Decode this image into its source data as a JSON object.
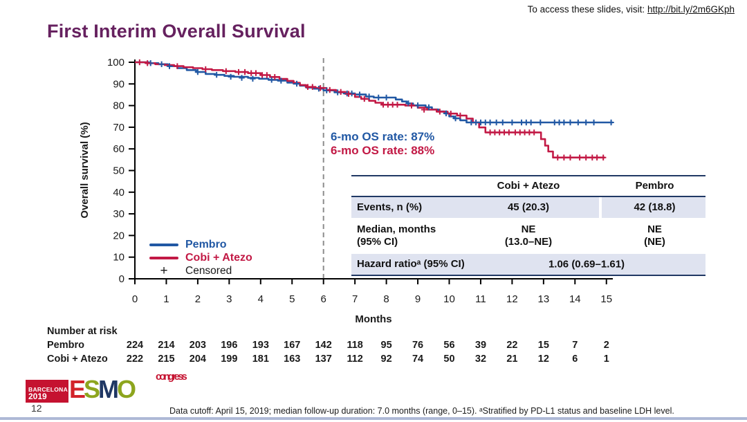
{
  "slide": {
    "access_note_prefix": "To access these slides, visit: ",
    "access_link": "http://bit.ly/2m6GKph",
    "title": "First Interim Overall Survival",
    "page_number": "12",
    "footer": "Data cutoff: April 15, 2019; median follow-up duration: 7.0 months (range, 0–15). ᵃStratified by PD-L1 status and baseline LDH level."
  },
  "logo": {
    "city": "BARCELONA",
    "year": "2019",
    "letters": [
      {
        "ch": "E",
        "color": "#D2232A"
      },
      {
        "ch": "S",
        "color": "#8DA51E"
      },
      {
        "ch": "M",
        "color": "#203864"
      },
      {
        "ch": "O",
        "color": "#8DA51E"
      }
    ],
    "congress": "congress"
  },
  "chart_data": {
    "type": "line",
    "subtype": "kaplan_meier_step",
    "title": "First Interim Overall Survival",
    "xlabel": "Months",
    "ylabel": "Overall survival (%)",
    "xlim": [
      0,
      15
    ],
    "ylim": [
      0,
      100
    ],
    "grid": false,
    "xticks": [
      0,
      1,
      2,
      3,
      4,
      5,
      6,
      7,
      8,
      9,
      10,
      11,
      12,
      13,
      14,
      15
    ],
    "yticks": [
      0,
      10,
      20,
      30,
      40,
      50,
      60,
      70,
      80,
      90,
      100
    ],
    "reference_line_x": 6,
    "reference_line_color": "#8C8C8C",
    "annotations": [
      {
        "text": "6-mo OS rate: 87%",
        "series": "Pembro",
        "color": "#2158A4"
      },
      {
        "text": "6-mo OS rate: 88%",
        "series": "Cobi + Atezo",
        "color": "#C21945"
      }
    ],
    "legend": [
      {
        "label": "Pembro",
        "color": "#2158A4",
        "marker": "line"
      },
      {
        "label": "Cobi + Atezo",
        "color": "#C21945",
        "marker": "line"
      },
      {
        "label": "Censored",
        "color": "#1A1A1A",
        "marker": "+"
      }
    ],
    "series": [
      {
        "name": "Pembro",
        "color": "#2158A4",
        "steps": [
          [
            0,
            100
          ],
          [
            0.45,
            99.6
          ],
          [
            0.75,
            99.1
          ],
          [
            1.05,
            98.2
          ],
          [
            1.35,
            97.3
          ],
          [
            1.65,
            96.4
          ],
          [
            1.95,
            95.5
          ],
          [
            2.25,
            94.6
          ],
          [
            2.55,
            94.2
          ],
          [
            2.85,
            93.7
          ],
          [
            3.15,
            93.3
          ],
          [
            3.6,
            92.8
          ],
          [
            3.95,
            92.4
          ],
          [
            4.25,
            91.9
          ],
          [
            4.55,
            91.5
          ],
          [
            4.85,
            90.6
          ],
          [
            5.05,
            90.1
          ],
          [
            5.25,
            89.2
          ],
          [
            5.45,
            88.3
          ],
          [
            5.7,
            87.8
          ],
          [
            6.0,
            87
          ],
          [
            6.35,
            86.1
          ],
          [
            6.65,
            85.6
          ],
          [
            7.0,
            85.1
          ],
          [
            7.35,
            84.2
          ],
          [
            7.6,
            83.7
          ],
          [
            8.3,
            82.8
          ],
          [
            8.5,
            81.9
          ],
          [
            8.65,
            81
          ],
          [
            8.85,
            80.1
          ],
          [
            9.25,
            79.2
          ],
          [
            9.45,
            78.2
          ],
          [
            9.65,
            77.3
          ],
          [
            9.85,
            76.4
          ],
          [
            10.0,
            75
          ],
          [
            10.15,
            74.1
          ],
          [
            10.35,
            73.2
          ],
          [
            10.55,
            72.2
          ],
          [
            15.2,
            72.2
          ]
        ],
        "censors": [
          [
            0.5,
            99.6
          ],
          [
            0.85,
            99.1
          ],
          [
            1.1,
            98.2
          ],
          [
            2.0,
            95.5
          ],
          [
            2.6,
            94.2
          ],
          [
            3.05,
            93.3
          ],
          [
            3.4,
            92.8
          ],
          [
            3.75,
            92.4
          ],
          [
            4.35,
            91.9
          ],
          [
            4.65,
            91.5
          ],
          [
            5.15,
            90.1
          ],
          [
            5.85,
            87.8
          ],
          [
            6.1,
            87
          ],
          [
            6.45,
            86.1
          ],
          [
            6.75,
            85.6
          ],
          [
            6.9,
            85.6
          ],
          [
            7.15,
            85.1
          ],
          [
            7.45,
            84.2
          ],
          [
            7.75,
            83.7
          ],
          [
            8.0,
            83.7
          ],
          [
            8.7,
            81
          ],
          [
            9.0,
            80.1
          ],
          [
            9.35,
            79.2
          ],
          [
            9.9,
            76.4
          ],
          [
            10.2,
            74.1
          ],
          [
            10.7,
            72.2
          ],
          [
            10.85,
            72.2
          ],
          [
            11.0,
            72.2
          ],
          [
            11.15,
            72.2
          ],
          [
            11.3,
            72.2
          ],
          [
            11.5,
            72.2
          ],
          [
            11.7,
            72.2
          ],
          [
            12.0,
            72.2
          ],
          [
            12.3,
            72.2
          ],
          [
            12.45,
            72.2
          ],
          [
            12.6,
            72.2
          ],
          [
            12.9,
            72.2
          ],
          [
            13.35,
            72.2
          ],
          [
            13.5,
            72.2
          ],
          [
            13.65,
            72.2
          ],
          [
            13.85,
            72.2
          ],
          [
            14.1,
            72.2
          ],
          [
            14.35,
            72.2
          ],
          [
            14.6,
            72.2
          ],
          [
            15.15,
            72.2
          ]
        ]
      },
      {
        "name": "Cobi + Atezo",
        "color": "#C21945",
        "steps": [
          [
            0,
            100
          ],
          [
            0.35,
            99.6
          ],
          [
            0.65,
            99.1
          ],
          [
            0.95,
            98.7
          ],
          [
            1.25,
            98.2
          ],
          [
            1.55,
            97.7
          ],
          [
            1.85,
            97.3
          ],
          [
            2.15,
            96.8
          ],
          [
            2.45,
            96.4
          ],
          [
            2.8,
            95.9
          ],
          [
            3.2,
            95.5
          ],
          [
            3.6,
            95
          ],
          [
            4.0,
            94.1
          ],
          [
            4.3,
            93.2
          ],
          [
            4.6,
            92.3
          ],
          [
            4.85,
            91.4
          ],
          [
            5.05,
            90.5
          ],
          [
            5.25,
            89.5
          ],
          [
            5.45,
            88.6
          ],
          [
            5.75,
            88.1
          ],
          [
            6.1,
            87.2
          ],
          [
            6.4,
            86.3
          ],
          [
            6.7,
            85.4
          ],
          [
            7.0,
            84
          ],
          [
            7.2,
            83.1
          ],
          [
            7.45,
            82.2
          ],
          [
            7.65,
            81.3
          ],
          [
            7.85,
            80.4
          ],
          [
            8.6,
            80
          ],
          [
            9.0,
            79
          ],
          [
            9.3,
            78.1
          ],
          [
            9.6,
            77.2
          ],
          [
            9.95,
            76.3
          ],
          [
            10.25,
            75.4
          ],
          [
            10.55,
            74
          ],
          [
            10.75,
            72.2
          ],
          [
            10.95,
            69.9
          ],
          [
            11.15,
            67.6
          ],
          [
            12.8,
            67.6
          ],
          [
            12.92,
            64.5
          ],
          [
            13.05,
            61.5
          ],
          [
            13.15,
            58.8
          ],
          [
            13.3,
            56
          ],
          [
            14.95,
            56
          ]
        ],
        "censors": [
          [
            0.15,
            100
          ],
          [
            0.4,
            99.6
          ],
          [
            1.35,
            98.2
          ],
          [
            2.25,
            96.8
          ],
          [
            2.9,
            95.9
          ],
          [
            3.3,
            95.5
          ],
          [
            3.5,
            95.5
          ],
          [
            3.7,
            95
          ],
          [
            3.85,
            95
          ],
          [
            4.05,
            94.1
          ],
          [
            4.2,
            94.1
          ],
          [
            4.45,
            93.2
          ],
          [
            5.5,
            88.6
          ],
          [
            5.65,
            88.6
          ],
          [
            5.9,
            88.1
          ],
          [
            6.2,
            87.2
          ],
          [
            6.55,
            86.3
          ],
          [
            6.8,
            85.4
          ],
          [
            7.3,
            83.1
          ],
          [
            7.9,
            80.4
          ],
          [
            8.05,
            80.4
          ],
          [
            8.2,
            80.4
          ],
          [
            8.35,
            80.4
          ],
          [
            8.8,
            80
          ],
          [
            9.2,
            78.1
          ],
          [
            9.7,
            77.2
          ],
          [
            10.05,
            76.3
          ],
          [
            10.35,
            75.4
          ],
          [
            11.3,
            67.6
          ],
          [
            11.45,
            67.6
          ],
          [
            11.6,
            67.6
          ],
          [
            11.75,
            67.6
          ],
          [
            11.9,
            67.6
          ],
          [
            12.1,
            67.6
          ],
          [
            12.25,
            67.6
          ],
          [
            12.4,
            67.6
          ],
          [
            12.55,
            67.6
          ],
          [
            12.7,
            67.6
          ],
          [
            13.45,
            56
          ],
          [
            13.65,
            56
          ],
          [
            13.85,
            56
          ],
          [
            14.15,
            56
          ],
          [
            14.35,
            56
          ],
          [
            14.55,
            56
          ],
          [
            14.7,
            56
          ],
          [
            14.9,
            56
          ]
        ]
      }
    ],
    "number_at_risk": {
      "title": "Number at risk",
      "rows": [
        {
          "label": "Pembro",
          "values": [
            224,
            214,
            203,
            196,
            193,
            167,
            142,
            118,
            95,
            76,
            56,
            39,
            22,
            15,
            7,
            2
          ]
        },
        {
          "label": "Cobi + Atezo",
          "values": [
            222,
            215,
            204,
            199,
            181,
            163,
            137,
            112,
            92,
            74,
            50,
            32,
            21,
            12,
            6,
            1
          ]
        }
      ]
    }
  },
  "table": {
    "col_header_a": "Cobi + Atezo",
    "col_header_b": "Pembro",
    "row1": {
      "label": "Events, n (%)",
      "a": "45 (20.3)",
      "b": "42 (18.8)"
    },
    "row2": {
      "label_line1": "Median, months",
      "label_line2": "(95% CI)",
      "a_line1": "NE",
      "a_line2": "(13.0–NE)",
      "b_line1": "NE",
      "b_line2": "(NE)"
    },
    "row3": {
      "label": "Hazard ratioᵃ (95% CI)",
      "value": "1.06 (0.69–1.61)"
    }
  }
}
